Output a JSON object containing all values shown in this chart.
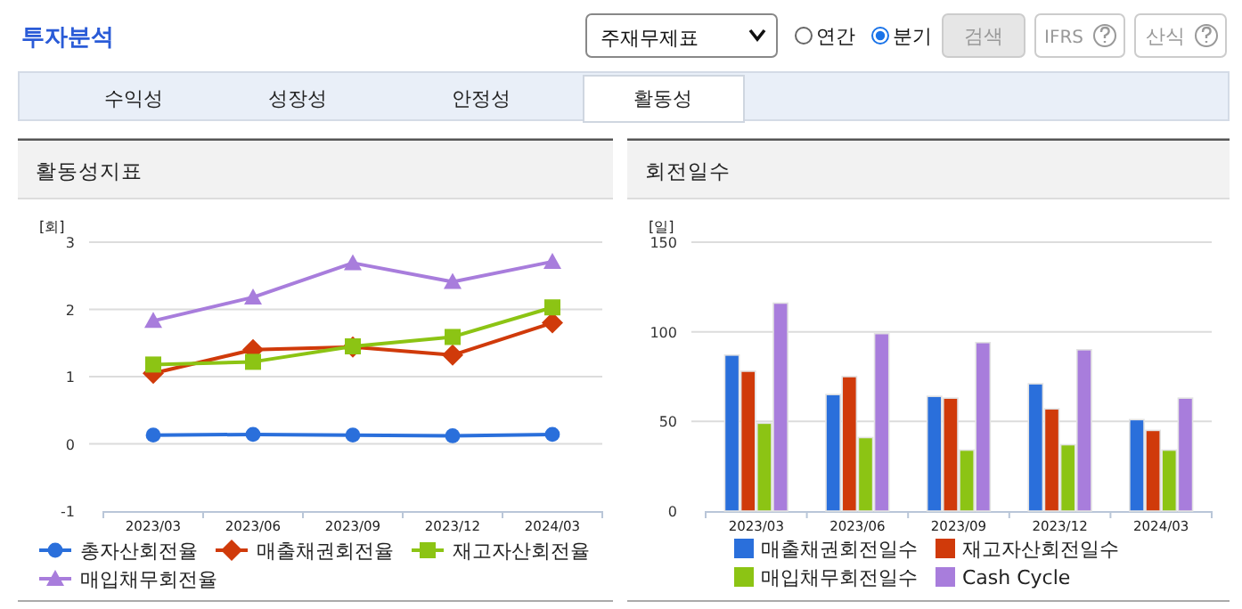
{
  "chart_data": [
    {
      "type": "other",
      "title": "투자분석",
      "annotations": [
        "주재무제표",
        "연간",
        "분기",
        "검색",
        "IFRS",
        "산식",
        "수익성",
        "성장성",
        "안정성",
        "활동성"
      ]
    },
    {
      "type": "line",
      "title": "활동성지표",
      "ylabel": "[회]",
      "categories": [
        "2023/03",
        "2023/06",
        "2023/09",
        "2023/12",
        "2024/03"
      ],
      "ylim": [
        -1,
        3
      ],
      "yticks": [
        -1,
        0,
        1,
        2,
        3
      ],
      "grid": "y",
      "legend": "bottom",
      "series": [
        {
          "name": "총자산회전율",
          "color": "#2a6fdb",
          "marker": "circle",
          "values": [
            0.13,
            0.14,
            0.13,
            0.12,
            0.14
          ]
        },
        {
          "name": "매출채권회전율",
          "color": "#d03a0a",
          "marker": "diamond",
          "values": [
            1.05,
            1.4,
            1.44,
            1.32,
            1.8
          ]
        },
        {
          "name": "재고자산회전율",
          "color": "#8cc414",
          "marker": "square",
          "values": [
            1.18,
            1.22,
            1.45,
            1.59,
            2.03
          ]
        },
        {
          "name": "매입채무회전율",
          "color": "#a87ddc",
          "marker": "triangle",
          "values": [
            1.83,
            2.18,
            2.69,
            2.41,
            2.71
          ]
        }
      ]
    },
    {
      "type": "bar",
      "title": "회전일수",
      "ylabel": "[일]",
      "categories": [
        "2023/03",
        "2023/06",
        "2023/09",
        "2023/12",
        "2024/03"
      ],
      "ylim": [
        0,
        150
      ],
      "yticks": [
        0,
        50,
        100,
        150
      ],
      "grid": "y",
      "legend": "bottom",
      "series": [
        {
          "name": "매출채권회전일수",
          "color": "#2a6fdb",
          "values": [
            87,
            65,
            64,
            71,
            51
          ]
        },
        {
          "name": "재고자산회전일수",
          "color": "#d03a0a",
          "values": [
            78,
            75,
            63,
            57,
            45
          ]
        },
        {
          "name": "매입채무회전일수",
          "color": "#8cc414",
          "values": [
            49,
            41,
            34,
            37,
            34
          ]
        },
        {
          "name": "Cash Cycle",
          "color": "#a87ddc",
          "values": [
            116,
            99,
            94,
            90,
            63
          ]
        }
      ]
    }
  ]
}
